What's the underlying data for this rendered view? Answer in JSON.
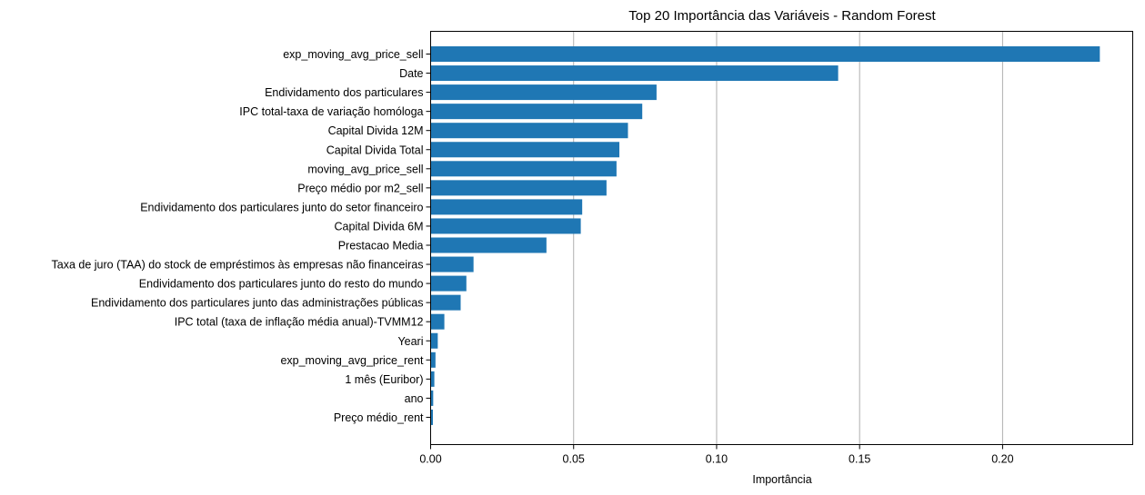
{
  "chart_data": {
    "type": "bar",
    "orientation": "horizontal",
    "title": "Top 20 Importância das Variáveis - Random Forest",
    "xlabel": "Importância",
    "ylabel": "",
    "xlim": [
      0,
      0.2455
    ],
    "xticks": [
      0.0,
      0.05,
      0.1,
      0.15,
      0.2
    ],
    "xtick_labels": [
      "0.00",
      "0.05",
      "0.10",
      "0.15",
      "0.20"
    ],
    "grid": "vertical x-axis gridlines",
    "bar_color": "#1f77b4",
    "categories": [
      "exp_moving_avg_price_sell",
      "Date",
      "Endividamento dos particulares",
      "IPC total-taxa de variação homóloga",
      "Capital Divida 12M",
      "Capital Divida Total",
      "moving_avg_price_sell",
      "Preço médio por m2_sell",
      "Endividamento dos particulares junto do setor financeiro",
      "Capital Divida 6M",
      "Prestacao Media",
      "Taxa de juro (TAA) do stock de empréstimos às empresas não financeiras",
      "Endividamento dos particulares junto do resto do mundo",
      "Endividamento dos particulares junto das administrações públicas",
      "IPC total (taxa de inflação média anual)-TVMM12",
      "Yeari",
      "exp_moving_avg_price_rent",
      "1 mês (Euribor)",
      "ano",
      "Preço médio_rent"
    ],
    "values": [
      0.234,
      0.1425,
      0.079,
      0.074,
      0.069,
      0.066,
      0.065,
      0.0615,
      0.053,
      0.0525,
      0.0405,
      0.015,
      0.0125,
      0.0105,
      0.0048,
      0.0025,
      0.0017,
      0.0013,
      0.0009,
      0.0008
    ]
  }
}
